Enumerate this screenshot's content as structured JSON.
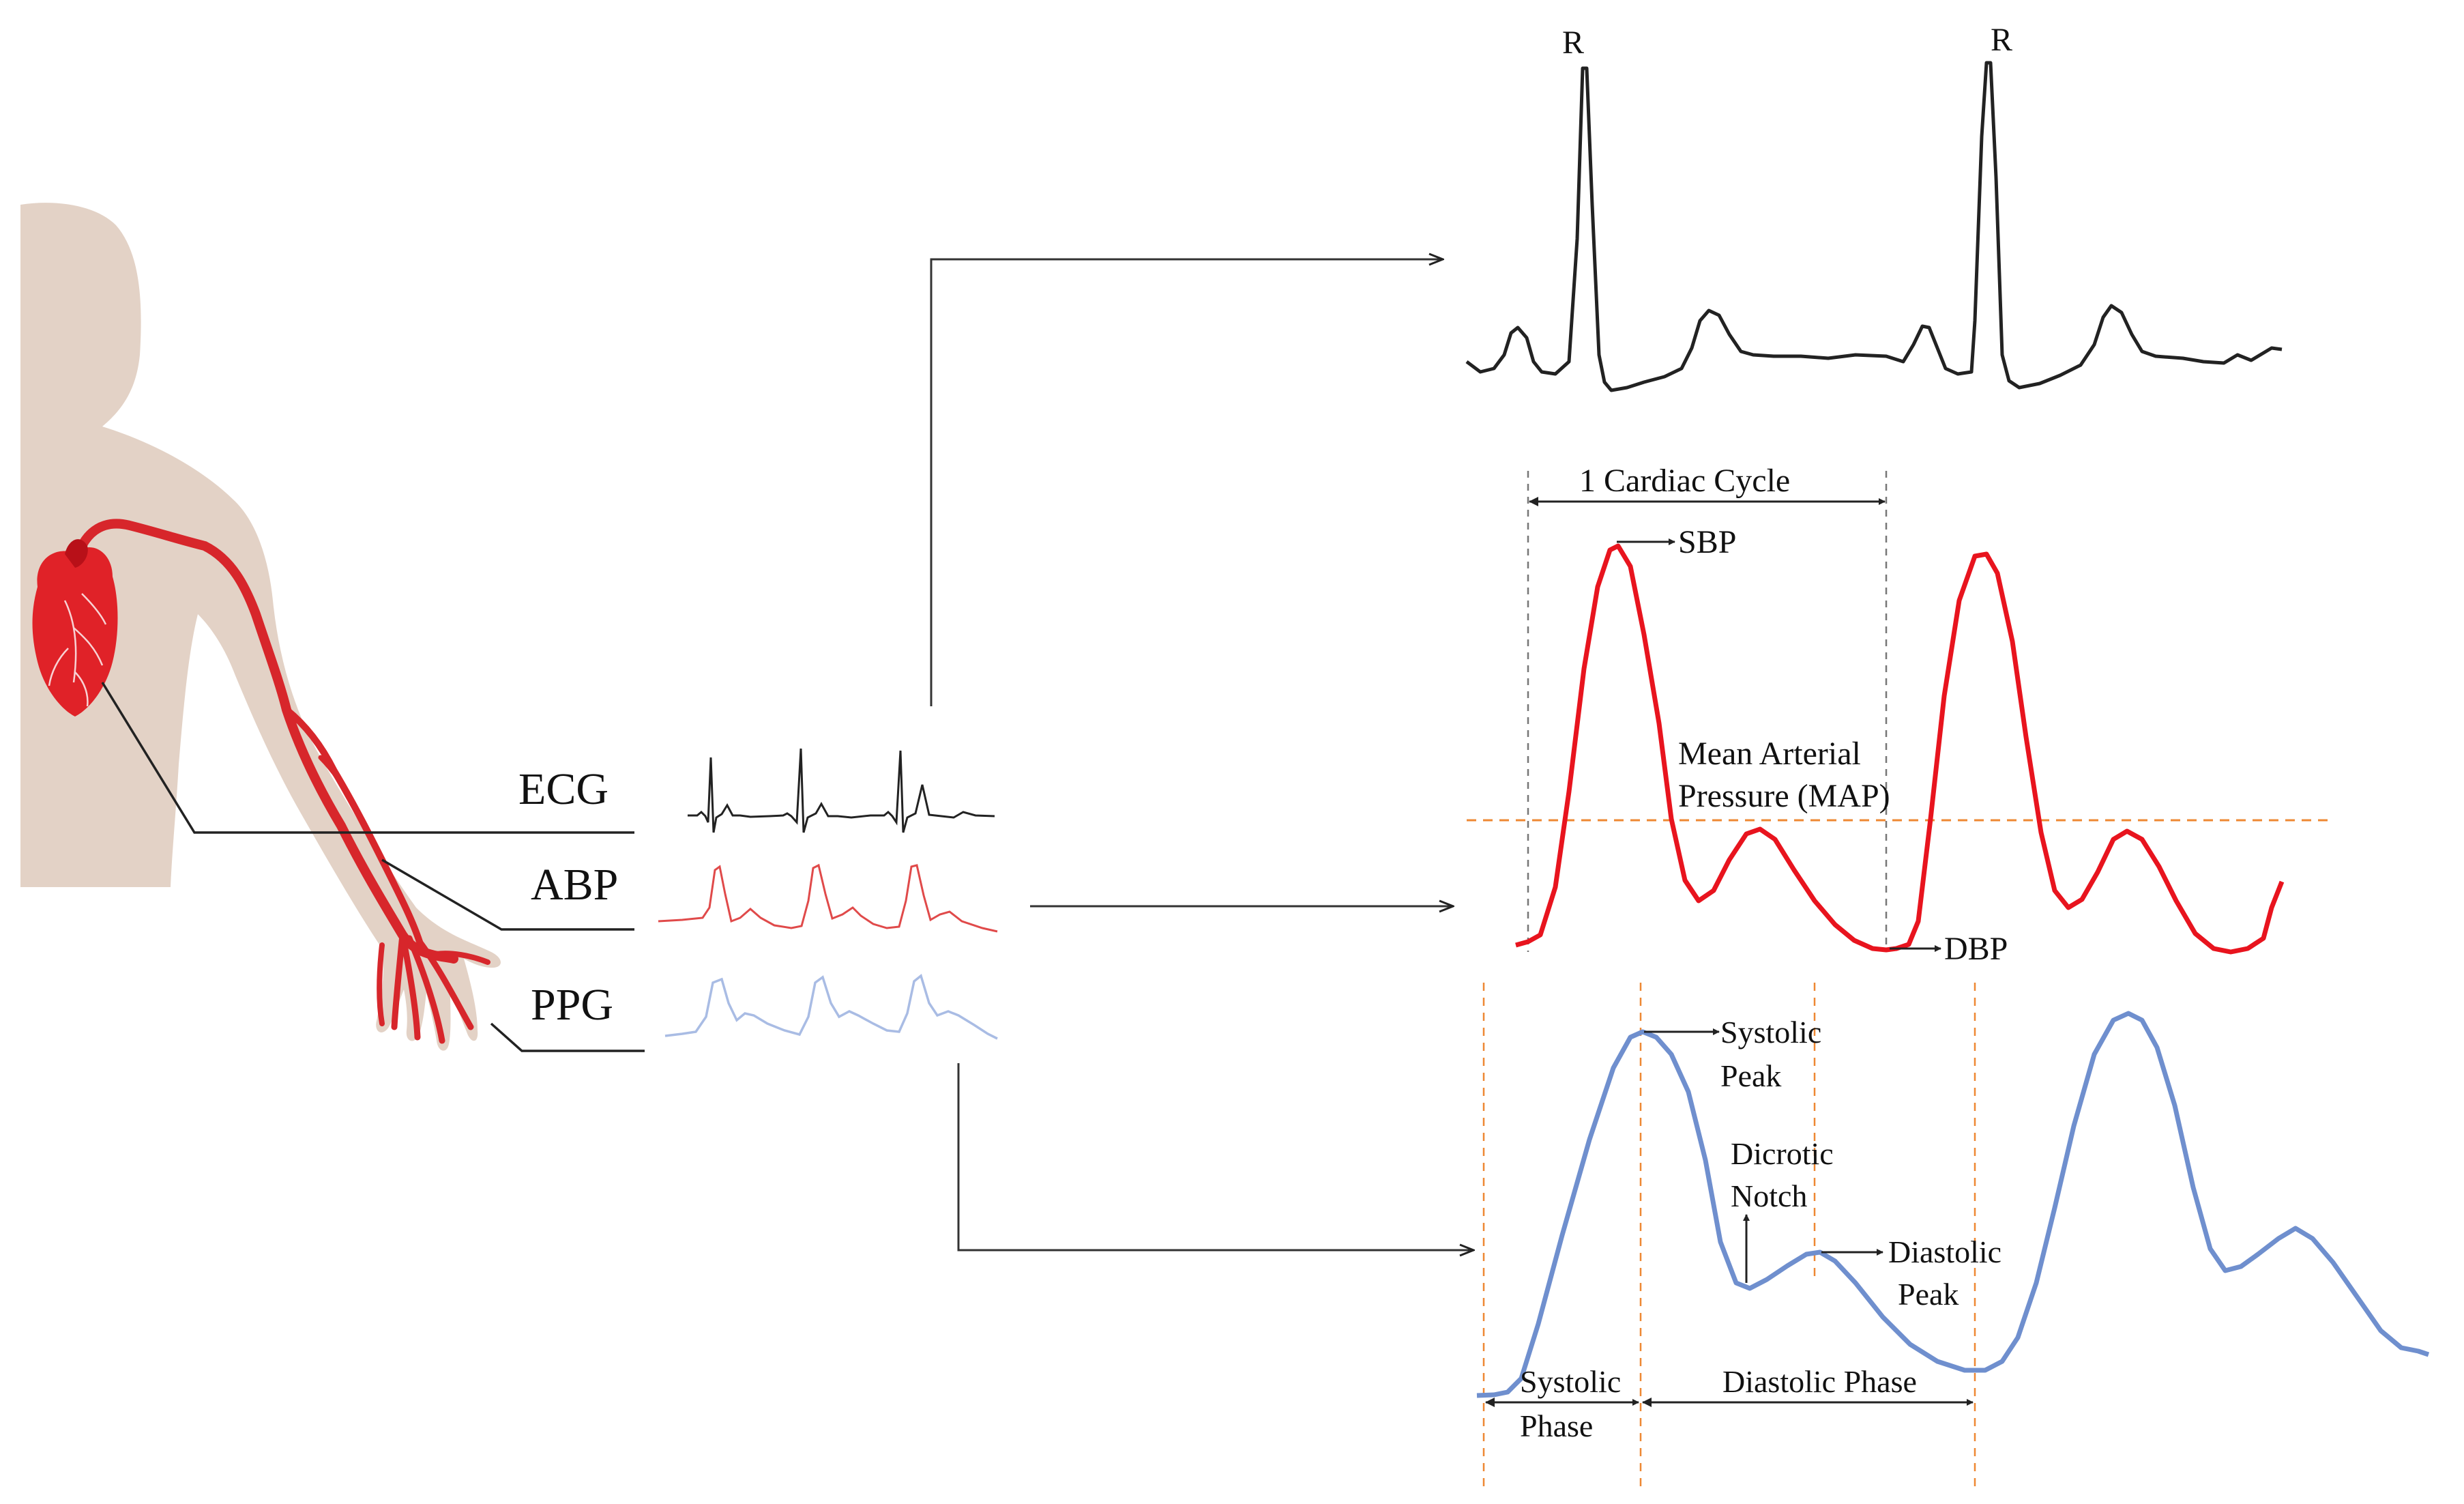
{
  "signals": {
    "ecg": "ECG",
    "abp": "ABP",
    "ppg": "PPG"
  },
  "ecg_panel": {
    "peak_label_1": "R",
    "peak_label_2": "R"
  },
  "abp_panel": {
    "cycle_label": "1 Cardiac Cycle",
    "sbp": "SBP",
    "dbp": "DBP",
    "map_line1": "Mean Arterial",
    "map_line2": "Pressure (MAP)"
  },
  "ppg_panel": {
    "systolic_peak_line1": "Systolic",
    "systolic_peak_line2": "Peak",
    "dicrotic_line1": "Dicrotic",
    "dicrotic_line2": "Notch",
    "diastolic_peak_line1": "Diastolic",
    "diastolic_peak_line2": "Peak",
    "systolic_phase_line1": "Systolic",
    "systolic_phase_line2": "Phase",
    "diastolic_phase": "Diastolic Phase"
  },
  "colors": {
    "ecg": "#222222",
    "abp": "#e8141e",
    "ppg": "#6f8fce",
    "ppg_small": "#a9bce4",
    "abp_small": "#e04a4a",
    "skin": "#e3d2c6",
    "vessel": "#d7262b",
    "heart": "#e02228",
    "guide_orange": "#ee8833"
  }
}
